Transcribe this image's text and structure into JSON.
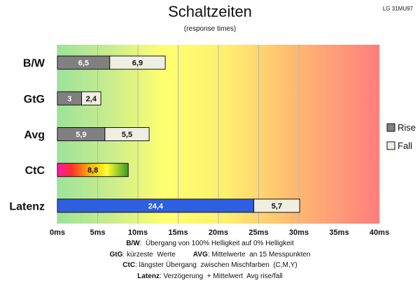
{
  "header": {
    "title": "Schaltzeiten",
    "subtitle": "(response times)",
    "model": "LG 31MU97"
  },
  "chart_data": {
    "type": "bar",
    "orientation": "horizontal",
    "stacked": true,
    "categories": [
      "B/W",
      "GtG",
      "Avg",
      "CtC",
      "Latenz"
    ],
    "series": [
      {
        "name": "Rise",
        "color": "#808080",
        "values": [
          6.5,
          3,
          5.9,
          8.8,
          24.4
        ]
      },
      {
        "name": "Fall",
        "color": "#eeeee2",
        "values": [
          6.9,
          2.4,
          5.5,
          null,
          5.7
        ]
      }
    ],
    "special_bars": {
      "CtC": {
        "style": "rainbow-gradient",
        "label": "8,8"
      },
      "Latenz": {
        "first_segment_color": "#2e5fe0"
      }
    },
    "value_labels": [
      [
        "6,5",
        "3",
        "5,9",
        "8,8",
        "24,4"
      ],
      [
        "6,9",
        "2,4",
        "5,5",
        "",
        "5,7"
      ]
    ],
    "x_ticks": [
      "0ms",
      "5ms",
      "10ms",
      "15ms",
      "20ms",
      "25ms",
      "30ms",
      "35ms",
      "40ms"
    ],
    "xlim": [
      0,
      40
    ],
    "background": "green-yellow-red gradient",
    "grid": true,
    "legend": "right"
  },
  "notes": [
    {
      "key": "B/W",
      "text": ":  Übergang von 100% Helligkeit auf 0% Helligkeit"
    },
    {
      "key": "GtG",
      "text": ": kürzeste  Werte         ",
      "key2": "AVG",
      "text2": ": Mittelwerte  an 15 Messpunkten"
    },
    {
      "key": "CtC",
      "text": ": längster Übergang  zwischen Mischfarben  (C,M,Y)"
    },
    {
      "key": "Latenz",
      "text": ": Verzögerung  + Mittelwert  Avg rise/fall"
    }
  ]
}
